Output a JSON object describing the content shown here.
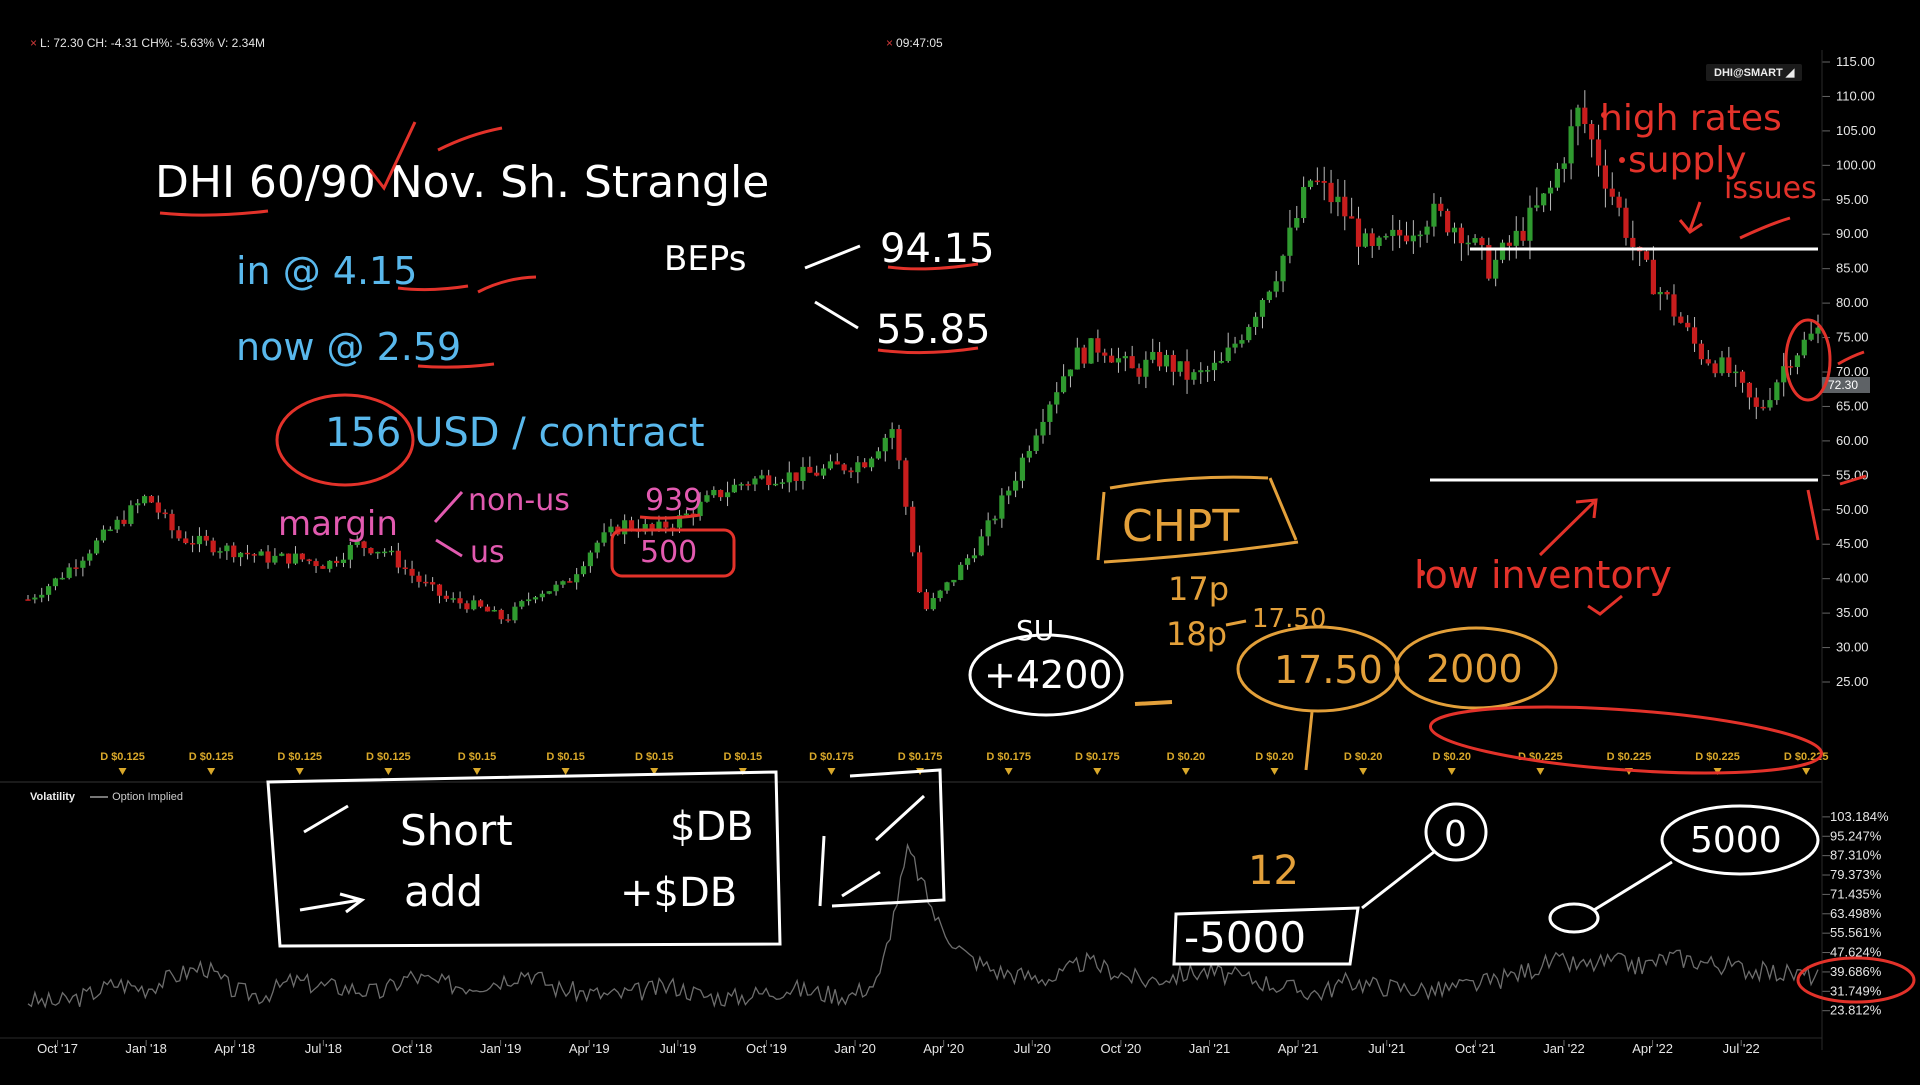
{
  "header": {
    "quote": "L: 72.30 CH: -4.31 CH%: -5.63% V: 2.34M",
    "time": "09:47:05"
  },
  "symbol_badge": "DHI@SMART",
  "colors": {
    "up": "#2f9a2f",
    "down": "#c81d1d",
    "white_ink": "#ffffff",
    "blue_ink": "#59b8ec",
    "pink_ink": "#e25ab0",
    "red_ink": "#e3322a",
    "orange_ink": "#e3a03a",
    "dividend": "#d9a82a",
    "volatility_line": "#6e6e6e"
  },
  "chart_data": [
    {
      "type": "candlestick",
      "symbol": "DHI@SMART",
      "ylim": [
        25,
        115
      ],
      "yticks": [
        "115.00",
        "110.00",
        "105.00",
        "100.00",
        "95.00",
        "90.00",
        "85.00",
        "80.00",
        "75.00",
        "70.00",
        "65.00",
        "60.00",
        "55.00",
        "50.00",
        "45.00",
        "40.00",
        "35.00",
        "30.00",
        "25.00"
      ],
      "xticks": [
        "Oct '17",
        "Jan '18",
        "Apr '18",
        "Jul '18",
        "Oct '18",
        "Jan '19",
        "Apr '19",
        "Jul '19",
        "Oct '19",
        "Jan '20",
        "Apr '20",
        "Jul '20",
        "Oct '20",
        "Jan '21",
        "Apr '21",
        "Jul '21",
        "Oct '21",
        "Jan '22",
        "Apr '22",
        "Jul '22"
      ],
      "last_price_label": "72.30",
      "close_path": {
        "dates": [
          "2017-09",
          "2017-10",
          "2017-11",
          "2017-12",
          "2018-01",
          "2018-02",
          "2018-03",
          "2018-04",
          "2018-05",
          "2018-06",
          "2018-07",
          "2018-08",
          "2018-09",
          "2018-10",
          "2018-11",
          "2018-12",
          "2019-01",
          "2019-02",
          "2019-03",
          "2019-04",
          "2019-05",
          "2019-06",
          "2019-07",
          "2019-08",
          "2019-09",
          "2019-10",
          "2019-11",
          "2019-12",
          "2020-01",
          "2020-02",
          "2020-03",
          "2020-04",
          "2020-05",
          "2020-06",
          "2020-07",
          "2020-08",
          "2020-09",
          "2020-10",
          "2020-11",
          "2020-12",
          "2021-01",
          "2021-02",
          "2021-03",
          "2021-04",
          "2021-05",
          "2021-06",
          "2021-07",
          "2021-08",
          "2021-09",
          "2021-10",
          "2021-11",
          "2021-12",
          "2022-01",
          "2022-02",
          "2022-03",
          "2022-04",
          "2022-05",
          "2022-06",
          "2022-07",
          "2022-08",
          "2022-09"
        ],
        "values": [
          37,
          40,
          44,
          48,
          52,
          46,
          45,
          44,
          43,
          43,
          42,
          45,
          44,
          40,
          37,
          36,
          34,
          38,
          39,
          45,
          48,
          47,
          49,
          52,
          54,
          55,
          55,
          56,
          57,
          62,
          35,
          40,
          46,
          54,
          64,
          72,
          74,
          70,
          72,
          69,
          71,
          78,
          86,
          98,
          94,
          87,
          90,
          93,
          91,
          85,
          90,
          96,
          108,
          97,
          86,
          80,
          73,
          70,
          64,
          72,
          76
        ]
      },
      "series_legend": "",
      "dividend_markers": [
        "D $0.125",
        "D $0.125",
        "D $0.125",
        "D $0.125",
        "D $0.15",
        "D $0.15",
        "D $0.15",
        "D $0.15",
        "D $0.175",
        "D $0.175",
        "D $0.175",
        "D $0.175",
        "D $0.20",
        "D $0.20",
        "D $0.20",
        "D $0.20",
        "D $0.225",
        "D $0.225",
        "D $0.225",
        "D $0.225"
      ]
    },
    {
      "type": "line",
      "title": "Volatility",
      "series": [
        {
          "name": "Option Implied"
        }
      ],
      "yticks": [
        "103.184%",
        "95.247%",
        "87.310%",
        "79.373%",
        "71.435%",
        "63.498%",
        "55.561%",
        "47.624%",
        "39.686%",
        "31.749%",
        "23.812%"
      ],
      "ylim": [
        20,
        106
      ],
      "values": [
        28,
        27,
        30,
        35,
        33,
        38,
        42,
        32,
        30,
        36,
        34,
        33,
        31,
        38,
        35,
        34,
        36,
        40,
        33,
        31,
        30,
        32,
        34,
        30,
        29,
        31,
        33,
        31,
        30,
        36,
        90,
        60,
        46,
        40,
        38,
        37,
        44,
        40,
        36,
        38,
        40,
        38,
        36,
        33,
        31,
        36,
        34,
        33,
        32,
        34,
        36,
        40,
        44,
        42,
        44,
        42,
        46,
        44,
        42,
        40,
        39,
        38
      ]
    }
  ],
  "annotations": {
    "title": "DHI  60/90  Nov.  Sh. Strangle",
    "entry": "in @ 4.15",
    "now": "now @ 2.59",
    "profit": "156 USD / contract",
    "margin_label": "margin",
    "margin_non_us": "non-us",
    "margin_non_us_value": "939",
    "margin_us": "us",
    "margin_us_value": "500",
    "beps_label": "BEPs",
    "bep_high": "94.15",
    "bep_low": "55.85",
    "chpt": "CHPT",
    "chpt_1": "17p",
    "chpt_2": "18p",
    "chpt_3": "17.50",
    "chpt_price": "17.50",
    "chpt_amount": "2000",
    "amount_4200_label": "SU",
    "amount_4200": "+4200",
    "notes_high_rates": "high rates",
    "notes_supply": "supply",
    "notes_issues": "issues",
    "notes_low_inventory": "low inventory",
    "box_short": "Short",
    "box_short_value": "$DB",
    "box_add": "add",
    "box_add_value": "+$DB",
    "count_12": "12",
    "circle_zero": "0",
    "minus_5000": "-5000",
    "circle_5000": "5000"
  }
}
